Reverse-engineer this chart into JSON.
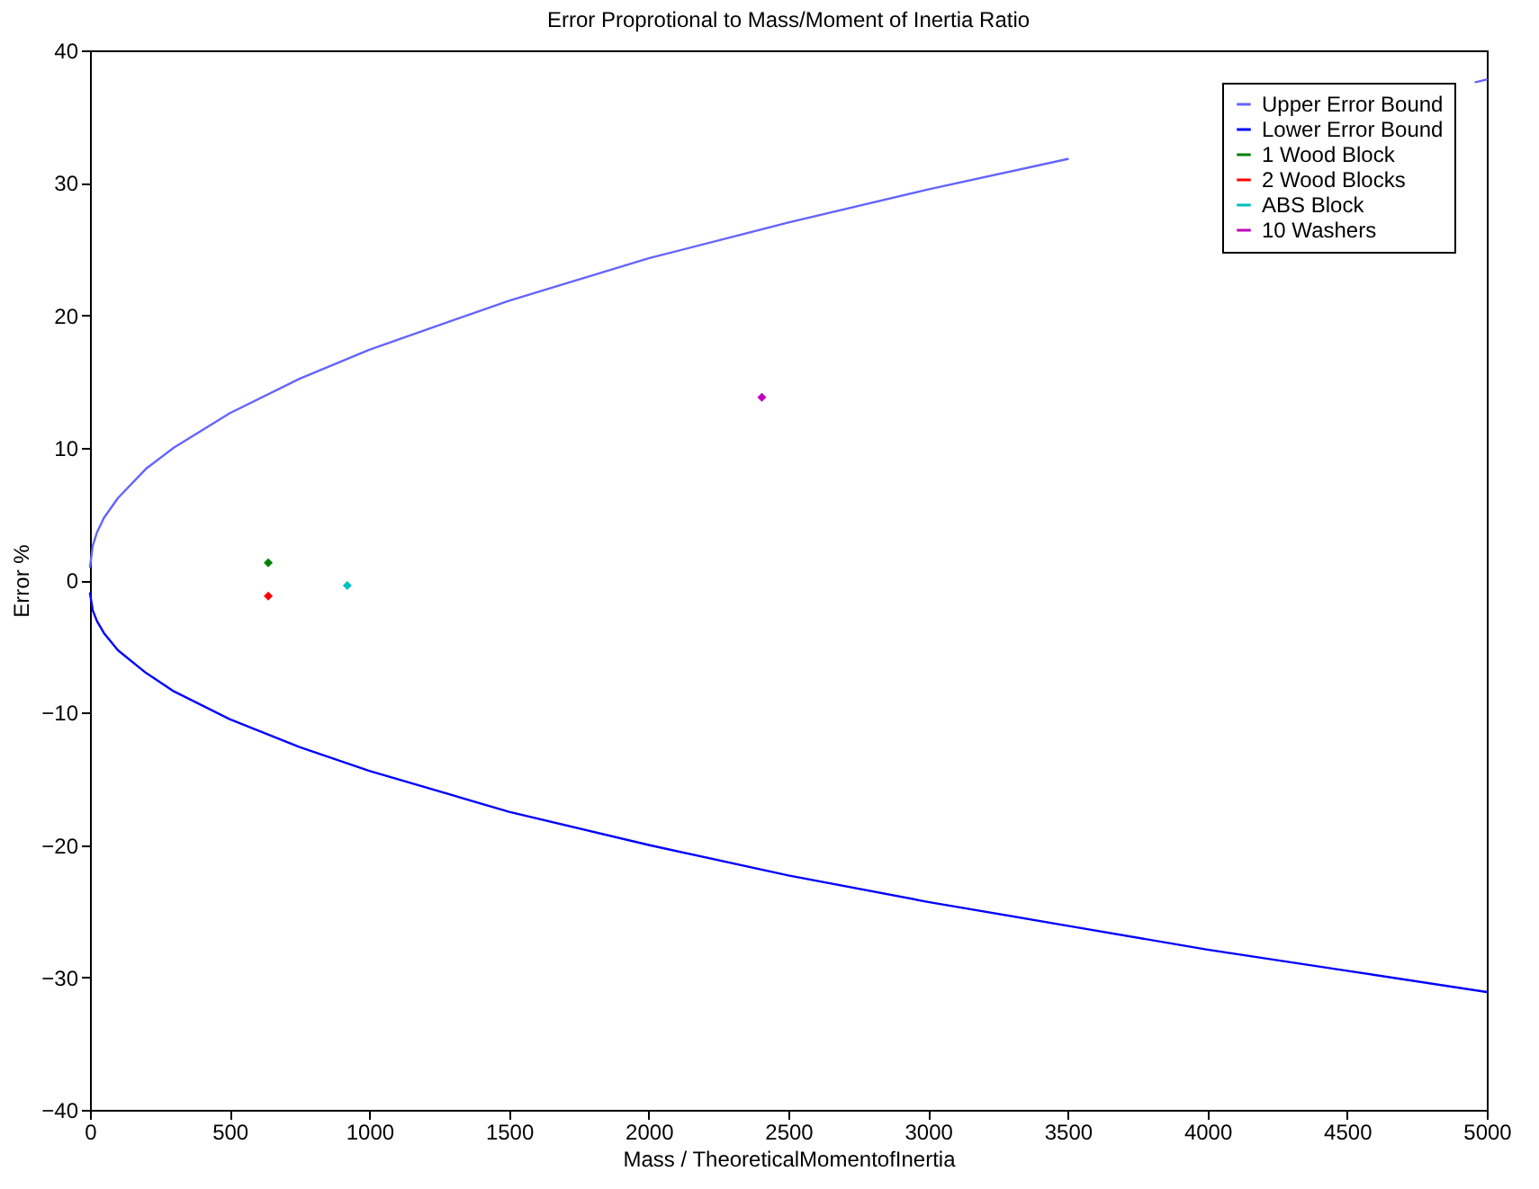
{
  "chart_data": {
    "type": "line",
    "title": "Error Proprotional to Mass/Moment of Inertia Ratio",
    "xlabel": "Mass / TheoreticalMomentofInertia",
    "ylabel": "Error %",
    "xlim": [
      0,
      5000
    ],
    "xticks": [
      0,
      500,
      1000,
      1500,
      2000,
      2500,
      3000,
      3500,
      4000,
      4500,
      5000
    ],
    "ylim": [
      -40,
      40
    ],
    "yticks": [
      -40,
      -30,
      -20,
      -10,
      0,
      10,
      20,
      30,
      40
    ],
    "grid": false,
    "legend": "top right",
    "line_style": "solid",
    "series": [
      {
        "name": "Upper Error Bound",
        "color": "#6464ff",
        "x": [
          0,
          10,
          25,
          50,
          100,
          200,
          300,
          500,
          750,
          1000,
          1500,
          2000,
          2500,
          3000,
          3500,
          4000,
          4500,
          4960,
          5000
        ],
        "values": [
          1,
          2.6,
          3.6,
          4.7,
          6.2,
          8.4,
          10.0,
          12.6,
          15.2,
          17.4,
          21.1,
          24.3,
          27.0,
          29.5,
          31.8,
          null,
          null,
          37.6,
          37.8
        ]
      },
      {
        "name": "Lower Error Bound",
        "color": "#0000ff",
        "x": [
          0,
          10,
          25,
          50,
          100,
          200,
          300,
          500,
          750,
          1000,
          1500,
          2000,
          2500,
          3000,
          3500,
          4000,
          4500,
          5000
        ],
        "values": [
          -1,
          -2.3,
          -3.1,
          -4.0,
          -5.3,
          -7.0,
          -8.4,
          -10.5,
          -12.6,
          -14.4,
          -17.5,
          -20.0,
          -22.3,
          -24.3,
          -26.1,
          -27.9,
          -29.5,
          -31.1
        ]
      },
      {
        "name": "1 Wood Block",
        "type": "scatter",
        "color": "#008000",
        "marker": "diamond",
        "x": [
          638
        ],
        "values": [
          1.3
        ]
      },
      {
        "name": "2 Wood Blocks",
        "type": "scatter",
        "color": "#ff0000",
        "marker": "diamond",
        "x": [
          638
        ],
        "values": [
          -1.2
        ]
      },
      {
        "name": "ABS Block",
        "type": "scatter",
        "color": "#00bfbf",
        "marker": "diamond",
        "x": [
          921
        ],
        "values": [
          -0.4
        ]
      },
      {
        "name": "10 Washers",
        "type": "scatter",
        "color": "#bf00bf",
        "marker": "diamond",
        "x": [
          2405
        ],
        "values": [
          13.8
        ]
      }
    ]
  }
}
